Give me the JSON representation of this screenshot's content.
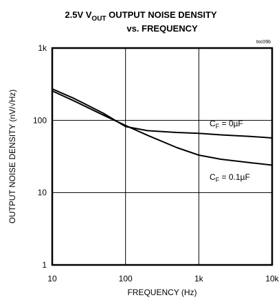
{
  "chart_data": {
    "type": "line",
    "title": [
      "2.5V V",
      "OUT",
      " OUTPUT NOISE DENSITY",
      "vs. FREQUENCY"
    ],
    "tag": "toc09b",
    "x_label": "FREQUENCY (Hz)",
    "y_label": "OUTPUT NOISE DENSITY (nV/√Hz)",
    "x": [
      10,
      20,
      50,
      100,
      200,
      500,
      1000,
      2000,
      5000,
      10000
    ],
    "series": [
      {
        "color": "#000000",
        "values": [
          272,
          200,
          125,
          82,
          72,
          68,
          66,
          63,
          60,
          57
        ]
      },
      {
        "color": "#000000",
        "values": [
          255,
          185,
          118,
          85,
          62,
          42,
          33,
          29,
          26,
          24
        ]
      }
    ],
    "annotations": [
      {
        "parts": [
          "C",
          "F",
          " = 0µF"
        ]
      },
      {
        "parts": [
          "C",
          "F",
          " = 0.1µF"
        ]
      }
    ],
    "xlim": [
      10,
      10000
    ],
    "ylim": [
      1,
      1000
    ],
    "xticks": [
      10,
      100,
      {
        "value": 1000,
        "label": "1k"
      },
      {
        "value": 10000,
        "label": "10k"
      }
    ],
    "yticks": [
      1,
      10,
      100,
      {
        "value": 1000,
        "label": "1k"
      }
    ],
    "xscale": "log",
    "yscale": "log",
    "grid": true
  }
}
